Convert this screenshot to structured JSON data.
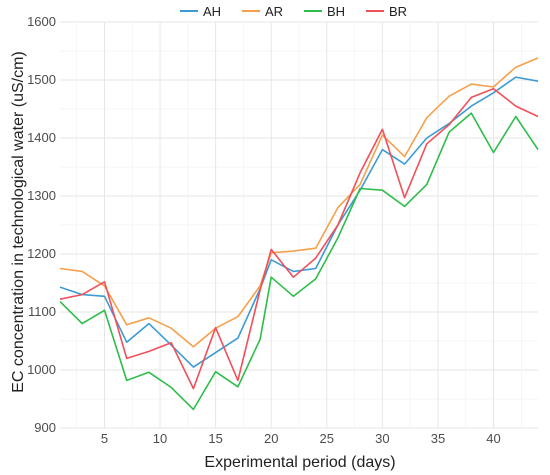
{
  "chart_data": {
    "type": "line",
    "title": "",
    "xlabel": "Experimental period (days)",
    "ylabel": "EC concentration in technological water (uS/cm)",
    "xlim": [
      1,
      44
    ],
    "ylim": [
      900,
      1600
    ],
    "xticks": [
      5,
      10,
      15,
      20,
      25,
      30,
      35,
      40
    ],
    "yticks": [
      900,
      1000,
      1100,
      1200,
      1300,
      1400,
      1500,
      1600
    ],
    "grid": true,
    "legend_position": "top",
    "x": [
      1,
      3,
      5,
      7,
      9,
      11,
      13,
      15,
      17,
      19,
      20,
      22,
      24,
      26,
      28,
      30,
      32,
      34,
      36,
      38,
      40,
      42,
      44
    ],
    "series": [
      {
        "name": "AH",
        "color": "#3d9bd4",
        "values": [
          1143,
          1130,
          1127,
          1048,
          1080,
          1043,
          1005,
          1030,
          1055,
          1140,
          1190,
          1170,
          1175,
          1250,
          1310,
          1380,
          1355,
          1400,
          1425,
          1455,
          1478,
          1505,
          1498
        ]
      },
      {
        "name": "AR",
        "color": "#f5a04b",
        "values": [
          1175,
          1170,
          1145,
          1078,
          1090,
          1072,
          1040,
          1072,
          1092,
          1145,
          1202,
          1205,
          1210,
          1280,
          1320,
          1405,
          1368,
          1435,
          1472,
          1493,
          1488,
          1522,
          1538
        ]
      },
      {
        "name": "BH",
        "color": "#2ebd4a",
        "values": [
          1118,
          1080,
          1103,
          982,
          996,
          970,
          932,
          997,
          971,
          1053,
          1160,
          1127,
          1157,
          1228,
          1313,
          1310,
          1282,
          1320,
          1410,
          1443,
          1375,
          1437,
          1380
        ]
      },
      {
        "name": "BR",
        "color": "#f0505a",
        "values": [
          1122,
          1130,
          1152,
          1020,
          1032,
          1047,
          968,
          1073,
          982,
          1138,
          1208,
          1160,
          1193,
          1250,
          1340,
          1415,
          1297,
          1390,
          1423,
          1470,
          1485,
          1455,
          1437
        ]
      }
    ]
  }
}
